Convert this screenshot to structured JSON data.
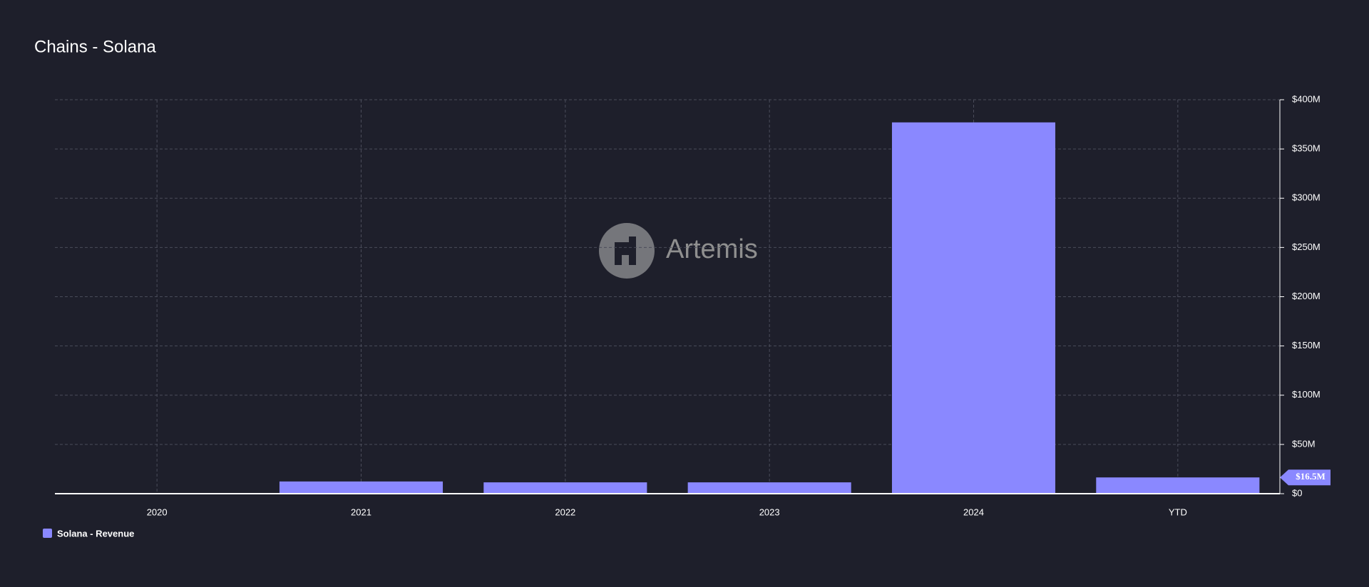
{
  "chart_data": {
    "type": "bar",
    "title": "Chains - Solana",
    "watermark": "Artemis",
    "categories": [
      "2020",
      "2021",
      "2022",
      "2023",
      "2024",
      "YTD"
    ],
    "series": [
      {
        "name": "Solana - Revenue",
        "color": "#8a88ff",
        "values": [
          0,
          12400000,
          11500000,
          11500000,
          377000000,
          16500000
        ],
        "value_labels": [
          null,
          null,
          null,
          null,
          null,
          "$16.5M"
        ]
      }
    ],
    "ylim": [
      0,
      400000000
    ],
    "yticks": [
      {
        "value": 0,
        "label": "$0"
      },
      {
        "value": 50000000,
        "label": "$50M"
      },
      {
        "value": 100000000,
        "label": "$100M"
      },
      {
        "value": 150000000,
        "label": "$150M"
      },
      {
        "value": 200000000,
        "label": "$200M"
      },
      {
        "value": 250000000,
        "label": "$250M"
      },
      {
        "value": 300000000,
        "label": "$300M"
      },
      {
        "value": 350000000,
        "label": "$350M"
      },
      {
        "value": 400000000,
        "label": "$400M"
      }
    ],
    "grid": true,
    "legend": "bottom-left"
  }
}
